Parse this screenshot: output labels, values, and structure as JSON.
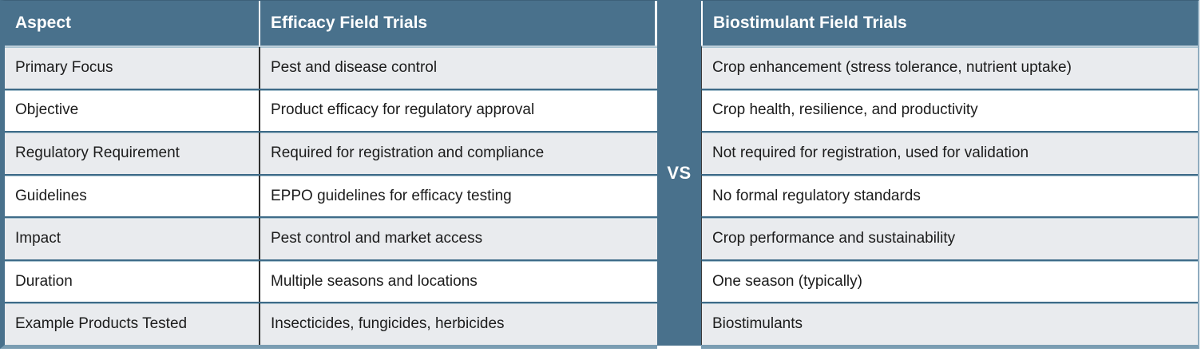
{
  "chart_data": {
    "type": "table",
    "divider_label": "VS",
    "left_table": {
      "columns": [
        "Aspect",
        "Efficacy Field Trials"
      ],
      "rows": [
        {
          "aspect": "Primary Focus",
          "value": "Pest and disease control"
        },
        {
          "aspect": "Objective",
          "value": "Product efficacy for regulatory approval"
        },
        {
          "aspect": "Regulatory Requirement",
          "value": "Required for registration and compliance"
        },
        {
          "aspect": "Guidelines",
          "value": "EPPO guidelines for efficacy testing"
        },
        {
          "aspect": "Impact",
          "value": "Pest control and market access"
        },
        {
          "aspect": "Duration",
          "value": "Multiple seasons and locations"
        },
        {
          "aspect": "Example Products Tested",
          "value": "Insecticides, fungicides, herbicides"
        }
      ]
    },
    "right_table": {
      "column": "Biostimulant Field Trials",
      "rows": [
        "Crop enhancement (stress tolerance, nutrient uptake)",
        "Crop health, resilience, and productivity",
        "Not required for registration, used for validation",
        "No formal regulatory standards",
        "Crop performance and sustainability",
        "One season (typically)",
        "Biostimulants"
      ]
    }
  },
  "colors": {
    "teal": "#49718C",
    "separator": "#3E6B88",
    "separator-light": "#A9C3D0",
    "row-alt": "#E9EBEE"
  }
}
